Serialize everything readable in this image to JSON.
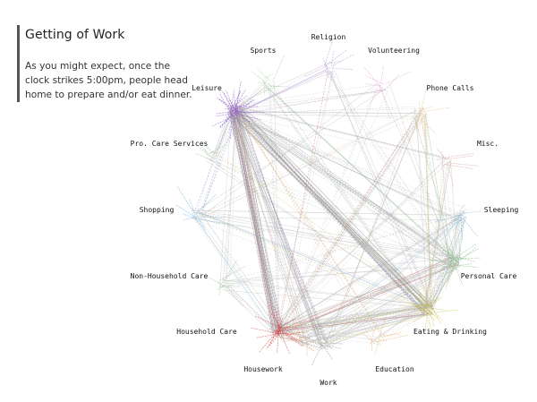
{
  "title": "Getting of Work",
  "description": "As you might expect, once the clock strikes 5:00pm, people head home to prepare and/or eat dinner.",
  "nodes": [
    {
      "id": "religion",
      "label": "Religion",
      "color": "#b9a3d6"
    },
    {
      "id": "volunteering",
      "label": "Volunteering",
      "color": "#e3a9cf"
    },
    {
      "id": "phone-calls",
      "label": "Phone Calls",
      "color": "#e8c28a"
    },
    {
      "id": "misc",
      "label": "Misc.",
      "color": "#d9a0a0"
    },
    {
      "id": "sleeping",
      "label": "Sleeping",
      "color": "#7fb3d9"
    },
    {
      "id": "personal-care",
      "label": "Personal Care",
      "color": "#8cc08c"
    },
    {
      "id": "eating-drinking",
      "label": "Eating & Drinking",
      "color": "#c9c04a"
    },
    {
      "id": "education",
      "label": "Education",
      "color": "#e8b070"
    },
    {
      "id": "work",
      "label": "Work",
      "color": "#9a9a9a"
    },
    {
      "id": "housework",
      "label": "Housework",
      "color": "#d9a07a"
    },
    {
      "id": "household-care",
      "label": "Household Care",
      "color": "#d24a4a"
    },
    {
      "id": "non-household-care",
      "label": "Non-Household Care",
      "color": "#a0c0a0"
    },
    {
      "id": "shopping",
      "label": "Shopping",
      "color": "#6fb0e0"
    },
    {
      "id": "pro-care-services",
      "label": "Pro. Care Services",
      "color": "#9ec89e"
    },
    {
      "id": "leisure",
      "label": "Leisure",
      "color": "#8e5fc9"
    },
    {
      "id": "sports",
      "label": "Sports",
      "color": "#a8cfa8"
    }
  ],
  "links": [
    {
      "from": "leisure",
      "to": "household-care",
      "weight": 22,
      "color": "#888888"
    },
    {
      "from": "leisure",
      "to": "eating-drinking",
      "weight": 18,
      "color": "#888888"
    },
    {
      "from": "leisure",
      "to": "work",
      "weight": 10,
      "color": "#999999"
    },
    {
      "from": "leisure",
      "to": "personal-care",
      "weight": 8,
      "color": "#999999"
    },
    {
      "from": "household-care",
      "to": "eating-drinking",
      "weight": 12,
      "color": "#999999"
    },
    {
      "from": "household-care",
      "to": "personal-care",
      "weight": 6,
      "color": "#999999"
    },
    {
      "from": "work",
      "to": "eating-drinking",
      "weight": 5,
      "color": "#aaaaaa"
    },
    {
      "from": "leisure",
      "to": "sleeping",
      "weight": 5,
      "color": "#aaaaaa"
    },
    {
      "from": "leisure",
      "to": "phone-calls",
      "weight": 4,
      "color": "#aaaaaa"
    },
    {
      "from": "leisure",
      "to": "misc",
      "weight": 3,
      "color": "#aaaaaa"
    },
    {
      "from": "leisure",
      "to": "shopping",
      "weight": 4,
      "color": "#aaaaaa"
    },
    {
      "from": "leisure",
      "to": "housework",
      "weight": 5,
      "color": "#aaaaaa"
    },
    {
      "from": "leisure",
      "to": "volunteering",
      "weight": 3,
      "color": "#aaaaaa"
    },
    {
      "from": "leisure",
      "to": "religion",
      "weight": 3,
      "color": "#aaaaaa"
    },
    {
      "from": "leisure",
      "to": "sports",
      "weight": 4,
      "color": "#aaaaaa"
    },
    {
      "from": "leisure",
      "to": "pro-care-services",
      "weight": 3,
      "color": "#aaaaaa"
    },
    {
      "from": "leisure",
      "to": "non-household-care",
      "weight": 3,
      "color": "#aaaaaa"
    },
    {
      "from": "leisure",
      "to": "education",
      "weight": 3,
      "color": "#aaaaaa"
    },
    {
      "from": "eating-drinking",
      "to": "personal-care",
      "weight": 8,
      "color": "#aaaaaa"
    },
    {
      "from": "eating-drinking",
      "to": "sleeping",
      "weight": 5,
      "color": "#aaaaaa"
    },
    {
      "from": "eating-drinking",
      "to": "phone-calls",
      "weight": 4,
      "color": "#aaaaaa"
    },
    {
      "from": "eating-drinking",
      "to": "shopping",
      "weight": 3,
      "color": "#aaaaaa"
    },
    {
      "from": "eating-drinking",
      "to": "housework",
      "weight": 4,
      "color": "#aaaaaa"
    },
    {
      "from": "eating-drinking",
      "to": "education",
      "weight": 3,
      "color": "#aaaaaa"
    },
    {
      "from": "eating-drinking",
      "to": "misc",
      "weight": 3,
      "color": "#aaaaaa"
    },
    {
      "from": "household-care",
      "to": "shopping",
      "weight": 4,
      "color": "#aaaaaa"
    },
    {
      "from": "household-care",
      "to": "housework",
      "weight": 5,
      "color": "#aaaaaa"
    },
    {
      "from": "household-care",
      "to": "work",
      "weight": 4,
      "color": "#aaaaaa"
    },
    {
      "from": "household-care",
      "to": "sleeping",
      "weight": 3,
      "color": "#aaaaaa"
    },
    {
      "from": "household-care",
      "to": "phone-calls",
      "weight": 3,
      "color": "#aaaaaa"
    },
    {
      "from": "household-care",
      "to": "non-household-care",
      "weight": 3,
      "color": "#aaaaaa"
    },
    {
      "from": "personal-care",
      "to": "sleeping",
      "weight": 4,
      "color": "#aaaaaa"
    },
    {
      "from": "personal-care",
      "to": "work",
      "weight": 3,
      "color": "#aaaaaa"
    },
    {
      "from": "personal-care",
      "to": "shopping",
      "weight": 3,
      "color": "#aaaaaa"
    },
    {
      "from": "personal-care",
      "to": "misc",
      "weight": 2,
      "color": "#aaaaaa"
    },
    {
      "from": "shopping",
      "to": "phone-calls",
      "weight": 2,
      "color": "#aaaaaa"
    },
    {
      "from": "shopping",
      "to": "sleeping",
      "weight": 2,
      "color": "#aaaaaa"
    },
    {
      "from": "sports",
      "to": "eating-drinking",
      "weight": 3,
      "color": "#aaaaaa"
    },
    {
      "from": "sports",
      "to": "household-care",
      "weight": 2,
      "color": "#aaaaaa"
    },
    {
      "from": "religion",
      "to": "eating-drinking",
      "weight": 2,
      "color": "#aaaaaa"
    },
    {
      "from": "religion",
      "to": "household-care",
      "weight": 2,
      "color": "#aaaaaa"
    },
    {
      "from": "volunteering",
      "to": "household-care",
      "weight": 2,
      "color": "#aaaaaa"
    },
    {
      "from": "volunteering",
      "to": "personal-care",
      "weight": 2,
      "color": "#aaaaaa"
    },
    {
      "from": "phone-calls",
      "to": "personal-care",
      "weight": 2,
      "color": "#aaaaaa"
    },
    {
      "from": "misc",
      "to": "household-care",
      "weight": 2,
      "color": "#aaaaaa"
    },
    {
      "from": "pro-care-services",
      "to": "eating-drinking",
      "weight": 2,
      "color": "#aaaaaa"
    },
    {
      "from": "pro-care-services",
      "to": "personal-care",
      "weight": 2,
      "color": "#aaaaaa"
    },
    {
      "from": "non-household-care",
      "to": "eating-drinking",
      "weight": 2,
      "color": "#aaaaaa"
    },
    {
      "from": "non-household-care",
      "to": "personal-care",
      "weight": 2,
      "color": "#aaaaaa"
    },
    {
      "from": "housework",
      "to": "personal-care",
      "weight": 3,
      "color": "#aaaaaa"
    },
    {
      "from": "housework",
      "to": "sleeping",
      "weight": 2,
      "color": "#aaaaaa"
    },
    {
      "from": "education",
      "to": "household-care",
      "weight": 2,
      "color": "#aaaaaa"
    },
    {
      "from": "work",
      "to": "sleeping",
      "weight": 2,
      "color": "#aaaaaa"
    },
    {
      "from": "work",
      "to": "phone-calls",
      "weight": 2,
      "color": "#aaaaaa"
    },
    {
      "from": "sports",
      "to": "personal-care",
      "weight": 2,
      "color": "#aaaaaa"
    },
    {
      "from": "religion",
      "to": "personal-care",
      "weight": 2,
      "color": "#aaaaaa"
    },
    {
      "from": "volunteering",
      "to": "shopping",
      "weight": 1,
      "color": "#aaaaaa"
    },
    {
      "from": "phone-calls",
      "to": "household-care",
      "weight": 2,
      "color": "#aaaaaa"
    },
    {
      "from": "sleeping",
      "to": "non-household-care",
      "weight": 1,
      "color": "#aaaaaa"
    }
  ]
}
